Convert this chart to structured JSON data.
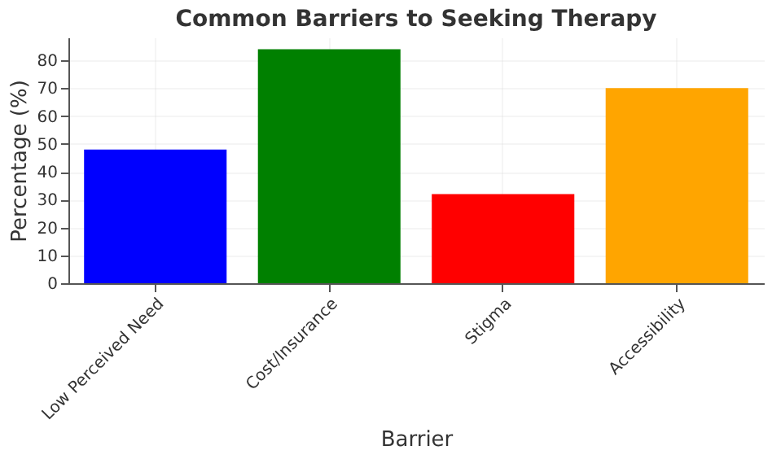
{
  "chart_data": {
    "type": "bar",
    "title": "Common Barriers to Seeking Therapy",
    "xlabel": "Barrier",
    "ylabel": "Percentage (%)",
    "categories": [
      "Low Perceived Need",
      "Cost/Insurance",
      "Stigma",
      "Accessibility"
    ],
    "values": [
      48,
      84,
      32,
      70
    ],
    "colors": [
      "#0000ff",
      "#008000",
      "#ff0000",
      "#ffa500"
    ],
    "ylim": [
      0,
      88.2
    ],
    "yticks": [
      0,
      10,
      20,
      30,
      40,
      50,
      60,
      70,
      80
    ],
    "grid": true
  }
}
